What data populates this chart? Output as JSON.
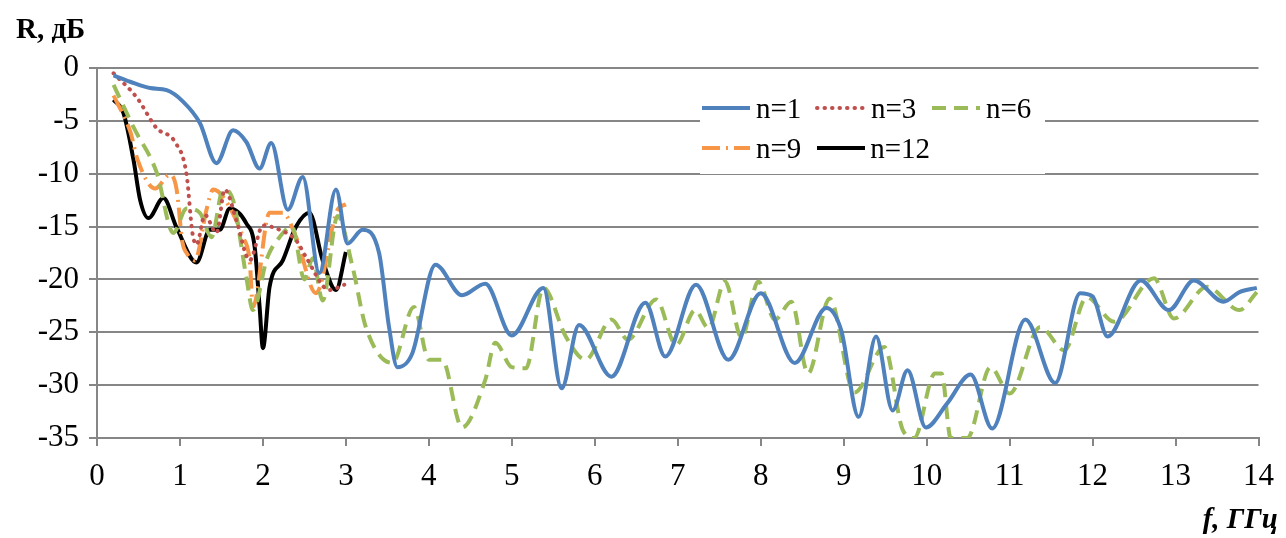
{
  "chart_data": {
    "type": "line",
    "xlabel": "f, ГГц",
    "ylabel": "R, дБ",
    "xlim": [
      0,
      14
    ],
    "xticks": [
      0,
      1,
      2,
      3,
      4,
      5,
      6,
      7,
      8,
      9,
      10,
      11,
      12,
      13,
      14
    ],
    "ylim": [
      -35,
      0
    ],
    "yticks": [
      -35,
      -30,
      -25,
      -20,
      -15,
      -10,
      -5,
      0
    ],
    "grid": "y",
    "legend": "top right",
    "marker": "none",
    "series": [
      {
        "name": "n=1",
        "color": "#4f81bd",
        "line_style": "solid",
        "x": [
          0.2,
          0.4,
          0.64,
          0.84,
          1.04,
          1.24,
          1.44,
          1.64,
          1.8,
          1.96,
          2.1,
          2.3,
          2.48,
          2.68,
          2.88,
          3.02,
          3.2,
          3.4,
          3.52,
          3.62,
          3.8,
          4.08,
          4.4,
          4.68,
          5.0,
          5.38,
          5.6,
          5.81,
          6.2,
          6.61,
          6.85,
          7.22,
          7.61,
          8.0,
          8.41,
          8.79,
          8.97,
          9.18,
          9.39,
          9.59,
          9.77,
          9.99,
          10.25,
          10.53,
          10.79,
          11.19,
          11.55,
          11.85,
          12.0,
          12.18,
          12.58,
          12.92,
          13.22,
          13.58,
          13.77,
          13.98
        ],
        "values": [
          -0.7,
          -1.3,
          -1.9,
          -2.1,
          -3.2,
          -5.2,
          -9,
          -5.9,
          -7,
          -9.5,
          -7.1,
          -13.4,
          -10.3,
          -19.4,
          -11.5,
          -16.6,
          -15.3,
          -17.5,
          -24.5,
          -28.3,
          -27,
          -18.6,
          -21.5,
          -20.4,
          -25.3,
          -20.8,
          -30.3,
          -24.3,
          -29.2,
          -22.2,
          -27.3,
          -20.5,
          -27.6,
          -21.3,
          -27.9,
          -22.7,
          -24.8,
          -33,
          -25.4,
          -32.4,
          -28.6,
          -34,
          -31.7,
          -29,
          -34.1,
          -23.8,
          -29.8,
          -21.3,
          -21.6,
          -25.4,
          -20.1,
          -22.9,
          -20.1,
          -22.1,
          -21.2,
          -20.8
        ]
      },
      {
        "name": "n=3",
        "color": "#c0504d",
        "line_style": "dotted",
        "x": [
          0.2,
          0.48,
          0.72,
          0.94,
          1.08,
          1.15,
          1.2,
          1.3,
          1.44,
          1.54,
          1.68,
          1.84,
          2.0,
          2.2,
          2.4,
          2.52,
          2.8,
          2.98
        ],
        "values": [
          -0.5,
          -2.8,
          -5.7,
          -7,
          -10.1,
          -15.6,
          -16.7,
          -13.9,
          -15.6,
          -11.5,
          -14.4,
          -18.2,
          -14.9,
          -15.3,
          -16.3,
          -17.9,
          -21,
          -20.5
        ]
      },
      {
        "name": "n=6",
        "color": "#9bbb59",
        "line_style": "dashed",
        "x": [
          0.2,
          0.44,
          0.72,
          0.92,
          1.08,
          1.24,
          1.38,
          1.52,
          1.64,
          1.8,
          1.88,
          2.05,
          2.2,
          2.35,
          2.5,
          2.6,
          2.72,
          2.9,
          3.08,
          3.24,
          3.56,
          3.82,
          4.0,
          4.16,
          4.4,
          4.68,
          4.8,
          5.0,
          5.17,
          5.38,
          5.65,
          5.89,
          6.2,
          6.4,
          6.74,
          6.98,
          7.21,
          7.37,
          7.57,
          7.77,
          7.97,
          8.17,
          8.37,
          8.57,
          8.83,
          9.13,
          9.49,
          9.71,
          9.85,
          10.1,
          10.18,
          10.29,
          10.49,
          10.77,
          11.0,
          11.37,
          11.66,
          11.93,
          12.26,
          12.74,
          12.98,
          13.38,
          13.77,
          13.98
        ],
        "values": [
          -1.6,
          -5.6,
          -9.9,
          -15.6,
          -13.3,
          -13.7,
          -16,
          -11.5,
          -12.5,
          -19.8,
          -22.9,
          -18,
          -16,
          -15,
          -20,
          -18,
          -22,
          -14,
          -18.8,
          -24.5,
          -27.9,
          -22.6,
          -27.6,
          -27.6,
          -34,
          -29.5,
          -26,
          -28.3,
          -28.4,
          -20.8,
          -25.4,
          -27.6,
          -23.8,
          -25.7,
          -21.9,
          -26.2,
          -22.9,
          -24.6,
          -20.2,
          -25.5,
          -20.2,
          -23.8,
          -22.1,
          -28.9,
          -21.8,
          -30.7,
          -26.4,
          -34.2,
          -35,
          -28.9,
          -28.9,
          -35,
          -35,
          -28.3,
          -30.8,
          -24.5,
          -26.7,
          -21.7,
          -24,
          -19.9,
          -23.7,
          -20.7,
          -22.9,
          -21.2
        ]
      },
      {
        "name": "n=9",
        "color": "#f79646",
        "line_style": "dashdot",
        "x": [
          0.2,
          0.4,
          0.49,
          0.7,
          0.88,
          0.96,
          1.03,
          1.08,
          1.18,
          1.32,
          1.4,
          1.52,
          1.76,
          1.84,
          1.88,
          2.08,
          2.24,
          2.4,
          2.64,
          2.9,
          3.0
        ],
        "values": [
          -2.6,
          -6,
          -8.7,
          -11.4,
          -10.1,
          -11.5,
          -16.5,
          -17.5,
          -18.2,
          -13.4,
          -11.5,
          -12.2,
          -16,
          -18.2,
          -22.6,
          -13.7,
          -13.7,
          -16,
          -21.3,
          -13.4,
          -12.9
        ]
      },
      {
        "name": "n=12",
        "color": "#000000",
        "line_style": "solid",
        "x": [
          0.2,
          0.32,
          0.44,
          0.52,
          0.62,
          0.8,
          0.96,
          1.2,
          1.36,
          1.48,
          1.6,
          1.8,
          1.9,
          1.96,
          2.0,
          2.08,
          2.24,
          2.4,
          2.56,
          2.72,
          2.88,
          3.0
        ],
        "values": [
          -3,
          -4.3,
          -8.7,
          -12.5,
          -14.2,
          -12.3,
          -15.1,
          -18.4,
          -15.3,
          -15.3,
          -13.3,
          -14.7,
          -16.9,
          -22.6,
          -26.5,
          -20.7,
          -18.2,
          -15,
          -13.7,
          -18.2,
          -21,
          -17.4
        ]
      }
    ]
  }
}
